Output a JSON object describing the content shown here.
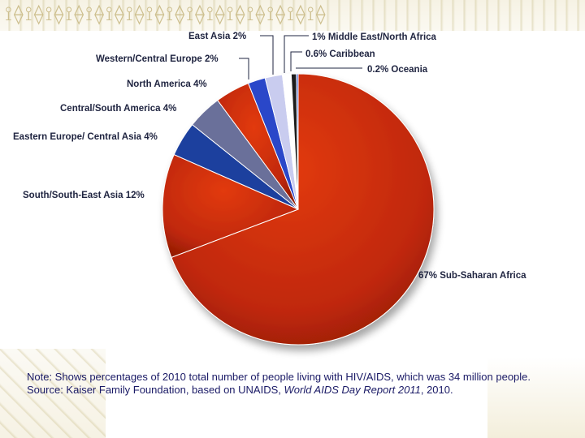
{
  "chart_data": {
    "type": "pie",
    "title": "",
    "slices": [
      {
        "label": "Sub-Saharan Africa",
        "value": 67,
        "pct_text": "67%",
        "color": "#c42a0a"
      },
      {
        "label": "South/South-East Asia",
        "value": 12,
        "pct_text": "12%",
        "color": "#c42a0a"
      },
      {
        "label": "Eastern Europe/ Central Asia",
        "value": 4,
        "pct_text": "4%",
        "color": "#1d3f9e"
      },
      {
        "label": "Central/South America",
        "value": 4,
        "pct_text": "4%",
        "color": "#6b6f9a"
      },
      {
        "label": "North America",
        "value": 4,
        "pct_text": "4%",
        "color": "#c42a0a"
      },
      {
        "label": "Western/Central Europe",
        "value": 2,
        "pct_text": "2%",
        "color": "#2a46c9"
      },
      {
        "label": "East Asia",
        "value": 2,
        "pct_text": "2%",
        "color": "#c9ccef"
      },
      {
        "label": "Middle East/North Africa",
        "value": 1,
        "pct_text": "1%",
        "color": "#ffffff"
      },
      {
        "label": "Caribbean",
        "value": 0.6,
        "pct_text": "0.6%",
        "color": "#1c1c1c"
      },
      {
        "label": "Oceania",
        "value": 0.2,
        "pct_text": "0.2%",
        "color": "#3355cc"
      }
    ]
  },
  "note": {
    "line1": "Note: Shows percentages of 2010 total number of people living with HIV/AIDS, which was 34 million people.",
    "source_prefix": "Source: Kaiser Family Foundation, based on UNAIDS, ",
    "source_title": "World AIDS Day Report 2011",
    "source_suffix": ", 2010."
  }
}
